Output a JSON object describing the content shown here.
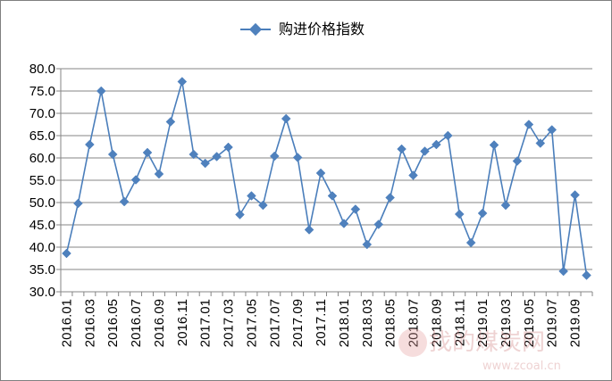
{
  "chart_data": {
    "type": "line",
    "legend": {
      "position": "top",
      "label": "购进价格指数"
    },
    "ylim": [
      30,
      80
    ],
    "yticks": [
      30.0,
      35.0,
      40.0,
      45.0,
      50.0,
      55.0,
      60.0,
      65.0,
      70.0,
      75.0,
      80.0
    ],
    "ytick_labels": [
      "30.0",
      "35.0",
      "40.0",
      "45.0",
      "50.0",
      "55.0",
      "60.0",
      "65.0",
      "70.0",
      "75.0",
      "80.0"
    ],
    "grid": true,
    "line_color": "#4a7ebb",
    "marker_color": "#4f81bd",
    "xtick_labels": [
      "2016.01",
      "2016.03",
      "2016.05",
      "2016.07",
      "2016.09",
      "2016.11",
      "2017.01",
      "2017.03",
      "2017.05",
      "2017.07",
      "2017.09",
      "2017.11",
      "2018.01",
      "2018.03",
      "2018.05",
      "2018.07",
      "2018.09",
      "2018.11",
      "2019.01",
      "2019.03",
      "2019.05",
      "2019.07",
      "2019.09"
    ],
    "series": [
      {
        "name": "购进价格指数",
        "x": [
          "2016.01",
          "2016.02",
          "2016.03",
          "2016.04",
          "2016.05",
          "2016.06",
          "2016.07",
          "2016.08",
          "2016.09",
          "2016.10",
          "2016.11",
          "2016.12",
          "2017.01",
          "2017.02",
          "2017.03",
          "2017.04",
          "2017.05",
          "2017.06",
          "2017.07",
          "2017.08",
          "2017.09",
          "2017.10",
          "2017.11",
          "2017.12",
          "2018.01",
          "2018.02",
          "2018.03",
          "2018.04",
          "2018.05",
          "2018.06",
          "2018.07",
          "2018.08",
          "2018.09",
          "2018.10",
          "2018.11",
          "2018.12",
          "2019.01",
          "2019.02",
          "2019.03",
          "2019.04",
          "2019.05",
          "2019.06",
          "2019.07",
          "2019.08",
          "2019.09",
          "2019.10"
        ],
        "values": [
          38.6,
          49.8,
          63.0,
          75.0,
          60.8,
          50.2,
          55.1,
          61.2,
          56.4,
          68.1,
          77.1,
          60.8,
          58.8,
          60.3,
          62.4,
          47.3,
          51.5,
          49.4,
          60.4,
          68.8,
          60.1,
          43.9,
          56.6,
          51.5,
          45.3,
          48.5,
          40.6,
          45.1,
          51.1,
          62.0,
          56.1,
          61.5,
          63.0,
          65.0,
          47.4,
          41.0,
          47.6,
          62.9,
          49.4,
          59.3,
          67.5,
          63.3,
          66.3,
          34.6,
          51.7,
          33.7
        ]
      }
    ]
  },
  "watermark": {
    "text": "找的煤炭网",
    "url": "www.zcoal.cn"
  }
}
